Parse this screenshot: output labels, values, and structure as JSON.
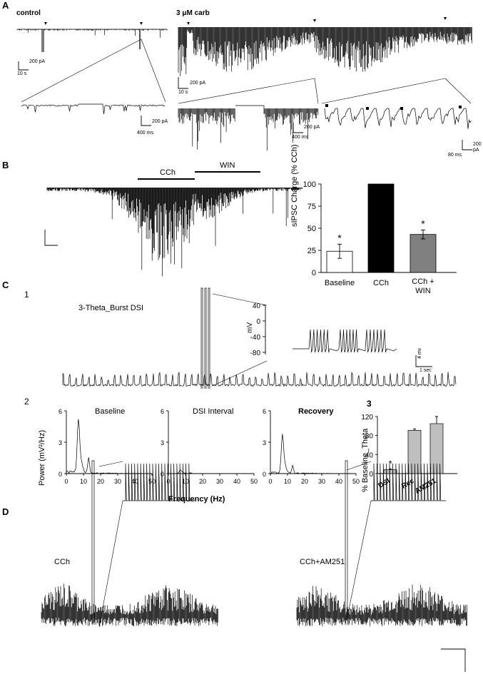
{
  "panelA": {
    "letter": "A",
    "control_label": "control",
    "carb_label": "3 μM carb",
    "scale_control": {
      "y": "200 pA",
      "x": "10 s"
    },
    "scale_carb": {
      "y": "200 pA",
      "x": "10 s"
    },
    "scale_zoom_control": {
      "y": "200 pA",
      "x": "400 ms"
    },
    "scale_zoom_carb": {
      "y": "200 pA",
      "x": "400 ms"
    },
    "scale_zoom_fine": {
      "y": "200 pA",
      "x": "80 ms"
    }
  },
  "panelB": {
    "letter": "B",
    "bar_cch": "CCh",
    "bar_win": "WIN",
    "chart_data": {
      "type": "bar",
      "categories": [
        "Baseline",
        "CCh",
        "CCh + WIN"
      ],
      "values": [
        24,
        100,
        43
      ],
      "errors": [
        8,
        0,
        5
      ],
      "significance": [
        "*",
        "",
        "*"
      ],
      "colors": [
        "#ffffff",
        "#000000",
        "#808080"
      ],
      "ylabel": "sIPSC Charge (% CCh)",
      "ylim": [
        0,
        100
      ],
      "yticks": [
        0,
        25,
        50,
        75,
        100
      ]
    }
  },
  "panelC": {
    "letter": "C",
    "sub1": "1",
    "sub2": "2",
    "sub3": "3",
    "trace_title": "3-Theta_Burst DSI",
    "inset_ylabel": "mV",
    "inset_yticks": [
      "40",
      "0",
      "-40",
      "-80"
    ],
    "scale": {
      "y": "4 mv",
      "x": "1 sec"
    },
    "power_plots": {
      "ylabel": "Power (mV²/Hz)",
      "xlabel": "Frequency (Hz)",
      "yticks": [
        "0",
        "3",
        "6"
      ],
      "xticks": [
        "0",
        "10",
        "20",
        "30",
        "40",
        "50"
      ],
      "titles": [
        "Baseline",
        "DSI Interval",
        "Recovery"
      ]
    },
    "chart_data": {
      "type": "bar",
      "categories": [
        "DSI",
        "Rec",
        "AM251"
      ],
      "values": [
        8,
        91,
        105
      ],
      "errors": [
        2,
        3,
        15
      ],
      "significance": [
        "*",
        "",
        ""
      ],
      "ylabel": "% Baseline_Theta",
      "ylim": [
        0,
        120
      ],
      "yticks": [
        0,
        40,
        80,
        120
      ]
    }
  },
  "panelD": {
    "letter": "D",
    "left_label": "CCh",
    "right_label": "CCh+AM251"
  }
}
